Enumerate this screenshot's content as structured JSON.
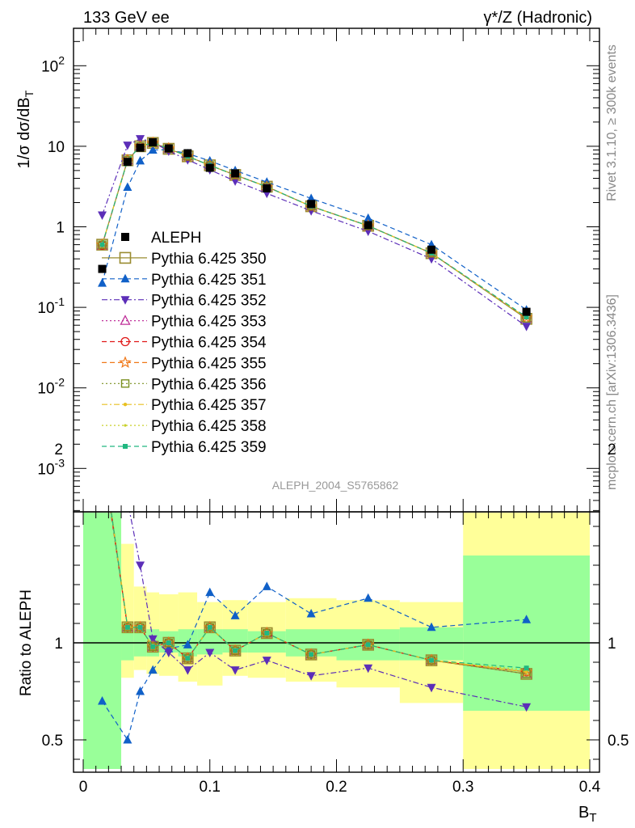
{
  "header": {
    "left": "133 GeV ee",
    "right": "γ*/Z (Hadronic)"
  },
  "side_labels": {
    "rivet": "Rivet 3.1.10, ≥ 300k events",
    "mcplots": "mcplots.cern.ch [arXiv:1306.3436]"
  },
  "analysis_tag": "ALEPH_2004_S5765862",
  "chart_data": [
    {
      "type": "line",
      "panel": "main",
      "ylabel": "1/σ dσ/dB_T",
      "yscale": "log",
      "ylim": [
        0.0003,
        300
      ],
      "xlim": [
        -0.012,
        0.41
      ],
      "y_tick_labels": [
        "10^-3",
        "10^-2",
        "10^-1",
        "1",
        "10",
        "10^2"
      ],
      "legend_position": "left-middle",
      "x": [
        0.015,
        0.035,
        0.045,
        0.055,
        0.0675,
        0.0825,
        0.1,
        0.12,
        0.145,
        0.18,
        0.225,
        0.275,
        0.35
      ],
      "data": {
        "name": "ALEPH",
        "color": "#000000",
        "marker": "square-filled",
        "values": [
          0.3,
          6.4,
          9.6,
          11.2,
          9.4,
          8.2,
          5.4,
          4.6,
          3.0,
          1.92,
          1.05,
          0.52,
          0.088
        ]
      },
      "series": [
        {
          "name": "Pythia 6.425 350",
          "color": "#9a8c30",
          "dash": "solid",
          "marker": "square-open-large",
          "values": [
            0.6,
            6.7,
            10.0,
            11.0,
            9.3,
            7.5,
            5.8,
            4.4,
            3.15,
            1.8,
            1.03,
            0.47,
            0.072
          ]
        },
        {
          "name": "Pythia 6.425 351",
          "color": "#1060c8",
          "dash": "dashed",
          "marker": "triangle-up-filled",
          "values": [
            0.2,
            3.1,
            6.6,
            9.0,
            9.1,
            8.1,
            6.6,
            5.0,
            3.6,
            2.25,
            1.28,
            0.6,
            0.093
          ]
        },
        {
          "name": "Pythia 6.425 352",
          "color": "#5c2eb8",
          "dash": "dashdot",
          "marker": "triangle-down-filled",
          "values": [
            1.4,
            10.3,
            12.4,
            11.3,
            8.7,
            6.8,
            5.1,
            3.7,
            2.6,
            1.58,
            0.88,
            0.4,
            0.058
          ]
        },
        {
          "name": "Pythia 6.425 353",
          "color": "#c0309a",
          "dash": "dotted",
          "marker": "triangle-up-open",
          "values": [
            0.59,
            6.7,
            10.0,
            11.0,
            9.4,
            7.5,
            5.8,
            4.4,
            3.15,
            1.8,
            1.03,
            0.47,
            0.073
          ]
        },
        {
          "name": "Pythia 6.425 354",
          "color": "#e01818",
          "dash": "dashed",
          "marker": "circle-open",
          "values": [
            0.59,
            6.7,
            10.0,
            11.0,
            9.4,
            7.5,
            5.8,
            4.4,
            3.15,
            1.8,
            1.03,
            0.47,
            0.074
          ]
        },
        {
          "name": "Pythia 6.425 355",
          "color": "#f07818",
          "dash": "dashed",
          "marker": "star-open",
          "values": [
            0.6,
            6.7,
            10.0,
            11.0,
            9.4,
            7.5,
            5.8,
            4.4,
            3.15,
            1.8,
            1.03,
            0.47,
            0.075
          ]
        },
        {
          "name": "Pythia 6.425 356",
          "color": "#7a9020",
          "dash": "dotted",
          "marker": "square-open",
          "values": [
            0.6,
            6.7,
            10.0,
            11.0,
            9.4,
            7.5,
            5.8,
            4.4,
            3.15,
            1.8,
            1.03,
            0.47,
            0.073
          ]
        },
        {
          "name": "Pythia 6.425 357",
          "color": "#e8c020",
          "dash": "dashdot",
          "marker": "dot",
          "values": [
            0.6,
            6.7,
            10.0,
            11.0,
            9.4,
            7.5,
            5.8,
            4.4,
            3.15,
            1.8,
            1.03,
            0.47,
            0.074
          ]
        },
        {
          "name": "Pythia 6.425 358",
          "color": "#c8d028",
          "dash": "dotted",
          "marker": "dot-small",
          "values": [
            0.6,
            6.7,
            10.0,
            11.0,
            9.4,
            7.5,
            5.8,
            4.4,
            3.15,
            1.8,
            1.03,
            0.47,
            0.074
          ]
        },
        {
          "name": "Pythia 6.425 359",
          "color": "#20b880",
          "dash": "dashed",
          "marker": "square-filled-small",
          "values": [
            0.6,
            6.7,
            10.0,
            11.0,
            9.4,
            7.5,
            5.8,
            4.4,
            3.15,
            1.8,
            1.03,
            0.47,
            0.076
          ]
        }
      ]
    },
    {
      "type": "line",
      "panel": "ratio",
      "ylabel": "Ratio to ALEPH",
      "xlabel": "B_T",
      "ylim": [
        0.35,
        2.3
      ],
      "xlim": [
        -0.012,
        0.41
      ],
      "x_ticks": [
        0,
        0.1,
        0.2,
        0.3,
        0.4
      ],
      "x_tick_labels": [
        "0",
        "0.1",
        "0.2",
        "0.3",
        "0.4"
      ],
      "y_ticks": [
        0.5,
        1,
        2
      ],
      "y_tick_labels": [
        "0.5",
        "1",
        "2"
      ],
      "bands": {
        "edges": [
          0.0,
          0.03,
          0.04,
          0.05,
          0.06,
          0.075,
          0.09,
          0.11,
          0.13,
          0.16,
          0.2,
          0.25,
          0.3,
          0.4
        ],
        "green_lo": [
          0.35,
          0.91,
          0.93,
          0.93,
          0.95,
          0.93,
          0.94,
          0.95,
          0.95,
          0.93,
          0.91,
          0.91,
          0.65
        ],
        "green_hi": [
          2.3,
          1.08,
          1.06,
          1.07,
          1.06,
          1.07,
          1.07,
          1.07,
          1.06,
          1.07,
          1.07,
          1.08,
          1.45
        ],
        "yellow_lo": [
          0.35,
          0.82,
          0.86,
          0.84,
          0.83,
          0.8,
          0.78,
          0.83,
          0.82,
          0.8,
          0.77,
          0.69,
          0.35
        ],
        "yellow_hi": [
          2.3,
          1.51,
          1.29,
          1.26,
          1.25,
          1.26,
          1.21,
          1.22,
          1.21,
          1.23,
          1.22,
          1.21,
          1.82
        ],
        "green_color": "#99ff99",
        "yellow_color": "#ffff99"
      },
      "reference_line": 1,
      "series": [
        {
          "name": "Pythia 6.425 350",
          "values": [
            2.01,
            1.08,
            1.08,
            0.98,
            1.0,
            0.92,
            1.08,
            0.96,
            1.05,
            0.94,
            0.99,
            0.91,
            0.84
          ]
        },
        {
          "name": "Pythia 6.425 351",
          "values": [
            0.7,
            0.5,
            0.75,
            0.86,
            0.97,
            0.99,
            1.26,
            1.14,
            1.29,
            1.15,
            1.23,
            1.08,
            1.12
          ]
        },
        {
          "name": "Pythia 6.425 352",
          "values": [
            2.5,
            1.73,
            1.4,
            1.02,
            0.95,
            0.86,
            0.95,
            0.86,
            0.91,
            0.83,
            0.87,
            0.77,
            0.67
          ]
        },
        {
          "name": "Pythia 6.425 353",
          "values": [
            1.98,
            1.08,
            1.08,
            0.98,
            1.0,
            0.92,
            1.08,
            0.96,
            1.05,
            0.94,
            0.99,
            0.91,
            0.84
          ]
        },
        {
          "name": "Pythia 6.425 354",
          "values": [
            1.98,
            1.08,
            1.08,
            0.98,
            1.0,
            0.92,
            1.08,
            0.96,
            1.05,
            0.94,
            0.99,
            0.91,
            0.85
          ]
        },
        {
          "name": "Pythia 6.425 355",
          "values": [
            2.0,
            1.08,
            1.08,
            0.98,
            1.0,
            0.92,
            1.08,
            0.96,
            1.05,
            0.94,
            0.99,
            0.91,
            0.85
          ]
        },
        {
          "name": "Pythia 6.425 356",
          "values": [
            2.0,
            1.08,
            1.08,
            0.98,
            1.0,
            0.92,
            1.08,
            0.96,
            1.05,
            0.94,
            0.99,
            0.91,
            0.84
          ]
        },
        {
          "name": "Pythia 6.425 357",
          "values": [
            2.0,
            1.08,
            1.08,
            0.98,
            1.0,
            0.92,
            1.08,
            0.96,
            1.05,
            0.94,
            0.99,
            0.91,
            0.85
          ]
        },
        {
          "name": "Pythia 6.425 358",
          "values": [
            2.0,
            1.08,
            1.08,
            0.98,
            1.0,
            0.92,
            1.08,
            0.96,
            1.05,
            0.94,
            0.99,
            0.91,
            0.86
          ]
        },
        {
          "name": "Pythia 6.425 359",
          "values": [
            2.0,
            1.08,
            1.08,
            0.98,
            1.0,
            0.92,
            1.08,
            0.96,
            1.05,
            0.94,
            0.99,
            0.91,
            0.87
          ]
        }
      ]
    }
  ]
}
